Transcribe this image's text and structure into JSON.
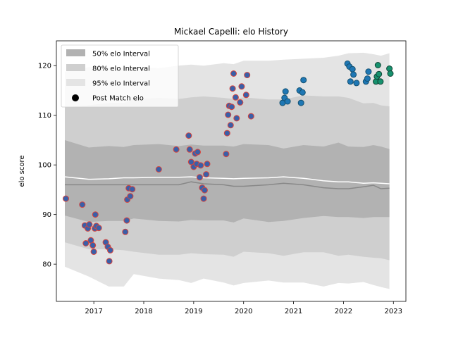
{
  "chart_data": {
    "type": "scatter",
    "title": "Mickael Capelli: elo History",
    "ylabel": "elo score",
    "xlabel": "",
    "xlim": [
      2016.25,
      2023.25
    ],
    "ylim": [
      72.5,
      125
    ],
    "xticks": [
      2017,
      2018,
      2019,
      2020,
      2021,
      2022,
      2023
    ],
    "xtick_labels": [
      "2017",
      "2018",
      "2019",
      "2020",
      "2021",
      "2022",
      "2023"
    ],
    "yticks": [
      80,
      90,
      100,
      110,
      120
    ],
    "ytick_labels": [
      "80",
      "90",
      "100",
      "110",
      "120"
    ],
    "grid": false,
    "legend": {
      "position": "top-left",
      "entries": [
        "50% elo Interval",
        "80% elo Interval",
        "95% elo Interval",
        "Post Match elo"
      ]
    },
    "bands": {
      "x": [
        2016.42,
        2016.9,
        2017.3,
        2017.6,
        2017.8,
        2018.3,
        2018.7,
        2018.95,
        2019.2,
        2019.6,
        2019.8,
        2020.0,
        2020.5,
        2020.8,
        2021.2,
        2021.6,
        2021.9,
        2022.1,
        2022.4,
        2022.6,
        2022.75,
        2022.92
      ],
      "p50_upper": [
        105,
        103.5,
        103.8,
        103.6,
        104,
        104.2,
        103.8,
        104.1,
        103.9,
        103.9,
        103.7,
        104.2,
        104,
        103.3,
        104,
        103.7,
        104.5,
        103.7,
        103.6,
        104,
        103.7,
        103.2
      ],
      "p50_lower": [
        89.8,
        88.5,
        88.7,
        88.7,
        89.2,
        88.7,
        88.6,
        88.9,
        88.8,
        88.8,
        88.4,
        89.2,
        88.5,
        88.7,
        89.3,
        89.7,
        89.5,
        89.5,
        89.3,
        89.5,
        89.5,
        89.5
      ],
      "p80_upper": [
        111.6,
        112,
        112.5,
        112.5,
        113.2,
        113.5,
        113.3,
        113.6,
        113.8,
        113.5,
        113.3,
        113.6,
        113.2,
        113.2,
        114,
        113.8,
        113.8,
        113.5,
        112.4,
        112.5,
        112,
        111.8
      ],
      "p80_lower": [
        84.4,
        83,
        83,
        82.8,
        82.5,
        81.9,
        81.9,
        82.2,
        82,
        81.9,
        81.5,
        82.5,
        82.2,
        81.7,
        82.4,
        82.4,
        81.7,
        81.9,
        81.5,
        81.3,
        81.2,
        80.8
      ],
      "p95_upper": [
        118.8,
        119.7,
        119.6,
        119.6,
        119.7,
        119.5,
        120,
        120.2,
        120,
        120.5,
        120.3,
        121,
        121,
        121.2,
        121.4,
        121.6,
        122,
        122.5,
        122.6,
        122.3,
        122,
        122.5
      ],
      "p95_lower": [
        79.5,
        77.5,
        75.5,
        75.5,
        78,
        77.1,
        76.8,
        76.2,
        77.1,
        76.3,
        75.7,
        76.2,
        76.7,
        76.3,
        76.3,
        75.5,
        76.2,
        76.1,
        76.4,
        75.8,
        75.4,
        75
      ],
      "median": [
        96,
        96,
        96,
        96,
        96,
        96,
        96,
        96.6,
        96.2,
        96,
        95.7,
        95.7,
        96,
        96.3,
        96,
        95.4,
        95.2,
        95.2,
        95.6,
        95.9,
        95.2,
        95.3
      ],
      "mean": [
        97.6,
        97.1,
        97.2,
        97.4,
        97.4,
        97.5,
        97.5,
        97.6,
        97.4,
        97.3,
        97.2,
        97.3,
        97.4,
        97.6,
        97.3,
        96.8,
        96.6,
        96.6,
        96.3,
        96.4,
        96.3,
        96.2
      ]
    },
    "series": [
      {
        "values": [
          [
            2016.44,
            93.2
          ],
          [
            2016.77,
            92
          ],
          [
            2016.82,
            87.8
          ],
          [
            2016.84,
            84.2
          ],
          [
            2016.88,
            87.2
          ],
          [
            2016.91,
            88
          ],
          [
            2016.94,
            84.8
          ],
          [
            2016.98,
            83.8
          ],
          [
            2017.0,
            82.5
          ],
          [
            2017.02,
            87.2
          ],
          [
            2017.03,
            90
          ],
          [
            2017.05,
            87.7
          ],
          [
            2017.1,
            87.3
          ],
          [
            2017.24,
            84.4
          ],
          [
            2017.28,
            83.5
          ],
          [
            2017.31,
            80.6
          ],
          [
            2017.33,
            82.8
          ],
          [
            2017.63,
            86.5
          ],
          [
            2017.66,
            88.8
          ],
          [
            2017.67,
            93
          ],
          [
            2017.7,
            95.3
          ],
          [
            2017.73,
            93.7
          ],
          [
            2017.77,
            95.1
          ],
          [
            2018.3,
            99.1
          ],
          [
            2018.65,
            103.1
          ],
          [
            2018.9,
            105.9
          ],
          [
            2018.92,
            103.1
          ],
          [
            2018.95,
            100.6
          ],
          [
            2019.0,
            99.6
          ],
          [
            2019.03,
            102.3
          ],
          [
            2019.06,
            100.2
          ],
          [
            2019.08,
            102.6
          ],
          [
            2019.12,
            97.5
          ],
          [
            2019.14,
            99.9
          ],
          [
            2019.17,
            95.4
          ],
          [
            2019.2,
            93.2
          ],
          [
            2019.22,
            94.9
          ],
          [
            2019.25,
            98.1
          ],
          [
            2019.27,
            100.2
          ],
          [
            2019.65,
            102.2
          ],
          [
            2019.67,
            106.4
          ],
          [
            2019.69,
            110.1
          ],
          [
            2019.71,
            111.9
          ],
          [
            2019.74,
            108
          ],
          [
            2019.76,
            111.7
          ],
          [
            2019.78,
            115.4
          ],
          [
            2019.8,
            118.4
          ],
          [
            2019.84,
            113.6
          ],
          [
            2019.86,
            109.4
          ],
          [
            2019.93,
            112.6
          ],
          [
            2019.96,
            115.8
          ],
          [
            2020.05,
            114.1
          ],
          [
            2020.07,
            118.1
          ],
          [
            2020.15,
            109.8
          ]
        ]
      },
      {
        "values": [
          [
            2020.78,
            112.5
          ],
          [
            2020.82,
            113.5
          ],
          [
            2020.84,
            114.8
          ],
          [
            2020.88,
            112.8
          ],
          [
            2021.12,
            115
          ],
          [
            2021.15,
            112.5
          ],
          [
            2021.18,
            114.6
          ],
          [
            2021.2,
            117.1
          ],
          [
            2022.08,
            120.4
          ],
          [
            2022.12,
            119.8
          ],
          [
            2022.14,
            116.8
          ],
          [
            2022.18,
            119.3
          ],
          [
            2022.2,
            118.2
          ],
          [
            2022.26,
            116.5
          ],
          [
            2022.45,
            116.8
          ],
          [
            2022.48,
            117.4
          ],
          [
            2022.5,
            118.8
          ]
        ]
      },
      {
        "values": [
          [
            2022.65,
            116.8
          ],
          [
            2022.67,
            117.8
          ],
          [
            2022.69,
            120.1
          ],
          [
            2022.71,
            118.3
          ],
          [
            2022.74,
            116.8
          ],
          [
            2022.92,
            119.4
          ],
          [
            2022.94,
            118.4
          ]
        ]
      }
    ],
    "colors": {
      "band50": "#b2b2b2",
      "band80": "#cfcfcf",
      "band95": "#e4e4e4",
      "median": "#888888",
      "mean": "#ffffff",
      "series1_fill": "#3a5fa8",
      "series1_edge": "#d8443c",
      "series2_fill": "#1f77b4",
      "series2_edge": "#14506f",
      "series3_fill": "#17916e",
      "series3_edge": "#114536",
      "legend_dot": "#000000"
    }
  }
}
